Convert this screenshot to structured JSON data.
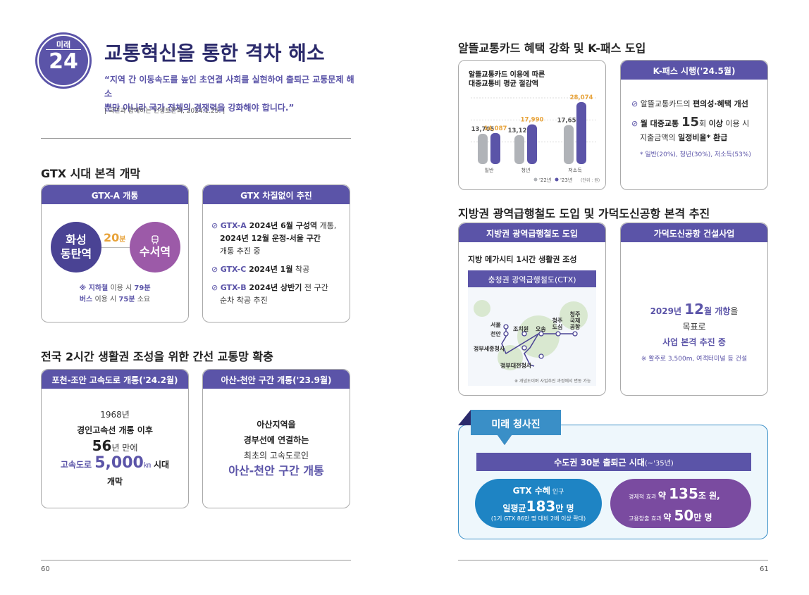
{
  "left": {
    "badge": {
      "label": "미래",
      "number": "24"
    },
    "title": "교통혁신을 통한 격차 해소",
    "quote_line1": "“지역 간 이동속도를 높인 초연결 사회를 실현하여 출퇴근 교통문제 해소",
    "quote_line2": "뿐만 아니라 국가 전체의 경쟁력을 강화해야 합니다.”",
    "source": "| 국민과 함께하는 민생토론회, 2024.1.25. |",
    "gtx_section": {
      "title": "GTX 시대 본격 개막",
      "card1": {
        "header": "GTX-A 개통",
        "from_line1": "화성",
        "from_line2": "동탄역",
        "minutes_num": "20",
        "minutes_unit": "분",
        "train_icon": "train-icon",
        "to": "수서역",
        "note_line1_a": "※ 지하철",
        "note_line1_b": " 이용 시 ",
        "note_line1_c": "79분",
        "note_line2_a": "버스",
        "note_line2_b": " 이용 시 ",
        "note_line2_c": "75분",
        "note_line2_d": " 소요"
      },
      "card2": {
        "header": "GTX 차질없이 추진",
        "item1_a": "GTX-A",
        "item1_b": " 2024년 6월 구성역",
        "item1_c": " 개통,",
        "item1_line2": "2024년 12월 운정-서울 구간",
        "item1_line3": "개통 추진 중",
        "item2_a": "GTX-C",
        "item2_b": " 2024년 1월",
        "item2_c": " 착공",
        "item3_a": "GTX-B",
        "item3_b": " 2024년 상반기",
        "item3_c": " 전 구간",
        "item3_line2": "순차 착공 추진"
      }
    },
    "trunk_section": {
      "title": "전국 2시간 생활권 조성을 위한 간선 교통망 확충",
      "card1": {
        "header": "포천-조안 고속도로 개통('24.2월)",
        "year": "1968년",
        "line2": "경인고속선 개통 이후",
        "years_num": "56",
        "years_rest": "년 만에",
        "line4_a": "고속도로 ",
        "line4_num": "5,000",
        "line4_unit": "㎞",
        "line4_b": " 시대",
        "line5": "개막"
      },
      "card2": {
        "header": "아산-천안 구간 개통('23.9월)",
        "line1": "아산지역을",
        "line2": "경부선에 연결하는",
        "line3": "최초의 고속도로인",
        "line4": "아산-천안 구간 개통"
      }
    },
    "page_number": "60"
  },
  "right": {
    "card_section": {
      "title": "알뜰교통카드 혜택 강화 및 K-패스 도입",
      "kpass_header": "K-패스 시행('24.5월)",
      "kpass_item1_a": "알뜰교통카드의 ",
      "kpass_item1_b": "편의성·혜택 개선",
      "kpass_item2_a": "월 대중교통 ",
      "kpass_item2_num": "15",
      "kpass_item2_b": "회 ",
      "kpass_item2_c": "이상",
      "kpass_item2_d": " 이용 시",
      "kpass_item2_line2_a": "지출금액의 ",
      "kpass_item2_line2_b": "일정비율*",
      "kpass_item2_line2_c": " 환급",
      "kpass_note": "* 일반(20%), 청년(30%), 저소득(53%)"
    },
    "chart_data": {
      "type": "bar",
      "title": "알뜰교통카드 이용에 따른 대중교통비 평균 절감액",
      "title_line1": "알뜰교통카드 이용에 따른",
      "title_line2": "대중교통비 평균 절감액",
      "categories": [
        "일반",
        "청년",
        "저소득"
      ],
      "series": [
        {
          "name": "'22년",
          "color": "#b0b3b8",
          "values": [
            13705,
            13128,
            17657
          ]
        },
        {
          "name": "'23년",
          "color": "#5b54a8",
          "values": [
            14087,
            17990,
            28074
          ]
        }
      ],
      "value_labels": [
        [
          "13,705",
          "13,128",
          "17,657"
        ],
        [
          "14,087",
          "17,990",
          "28,074"
        ]
      ],
      "unit": "(단위 : 원)",
      "ylim": [
        0,
        30000
      ],
      "grid": true,
      "legend_position": "bottom"
    },
    "rail_section": {
      "title": "지방권 광역급행철도 도입 및 가덕도신공항 본격 추진",
      "card1": {
        "header": "지방권 광역급행철도 도입",
        "subtitle": "지방 메가시티 1시간 생활권 조성",
        "map_title": "충청권 광역급행철도(CTX)",
        "stations": {
          "seoul": "서울",
          "cheonan": "천안",
          "jochiwon": "조치원",
          "osong": "오송",
          "cheongju_ds_1": "청주",
          "cheongju_ds_2": "도심",
          "airport_1": "청주",
          "airport_2": "국제",
          "airport_3": "공항",
          "sejong": "정부세종청사",
          "daejeon": "정부대전청사"
        },
        "map_note": "※ 개념도이며 사업추진 과정에서 변동 가능"
      },
      "card2": {
        "header": "가덕도신공항 건설사업",
        "line1_a": "2029년 ",
        "line1_num": "12",
        "line1_b": "월 개항",
        "line1_c": "을",
        "line2": "목표로",
        "line3": "사업 본격 추진 중",
        "note": "※ 활주로 3,500m, 여객터미널 등 건설"
      }
    },
    "future": {
      "tag": "미래 청사진",
      "banner_a": "수도권 30분 출퇴근 시대",
      "banner_b": "(~'35년)",
      "left_a": "GTX 수혜",
      "left_b": " 인구",
      "left_line2_a": "일평균",
      "left_line2_num": "183",
      "left_line2_b": "만 명",
      "left_line3": "(1기 GTX 86만 명 대비 2배 이상 확대)",
      "right_line1_a": "경제적 효과 ",
      "right_line1_b": "약 ",
      "right_line1_num": "135",
      "right_line1_c": "조 원,",
      "right_line2_a": "고용창출 효과 ",
      "right_line2_b": "약 ",
      "right_line2_num": "50",
      "right_line2_c": "만 명"
    },
    "page_number": "61"
  }
}
